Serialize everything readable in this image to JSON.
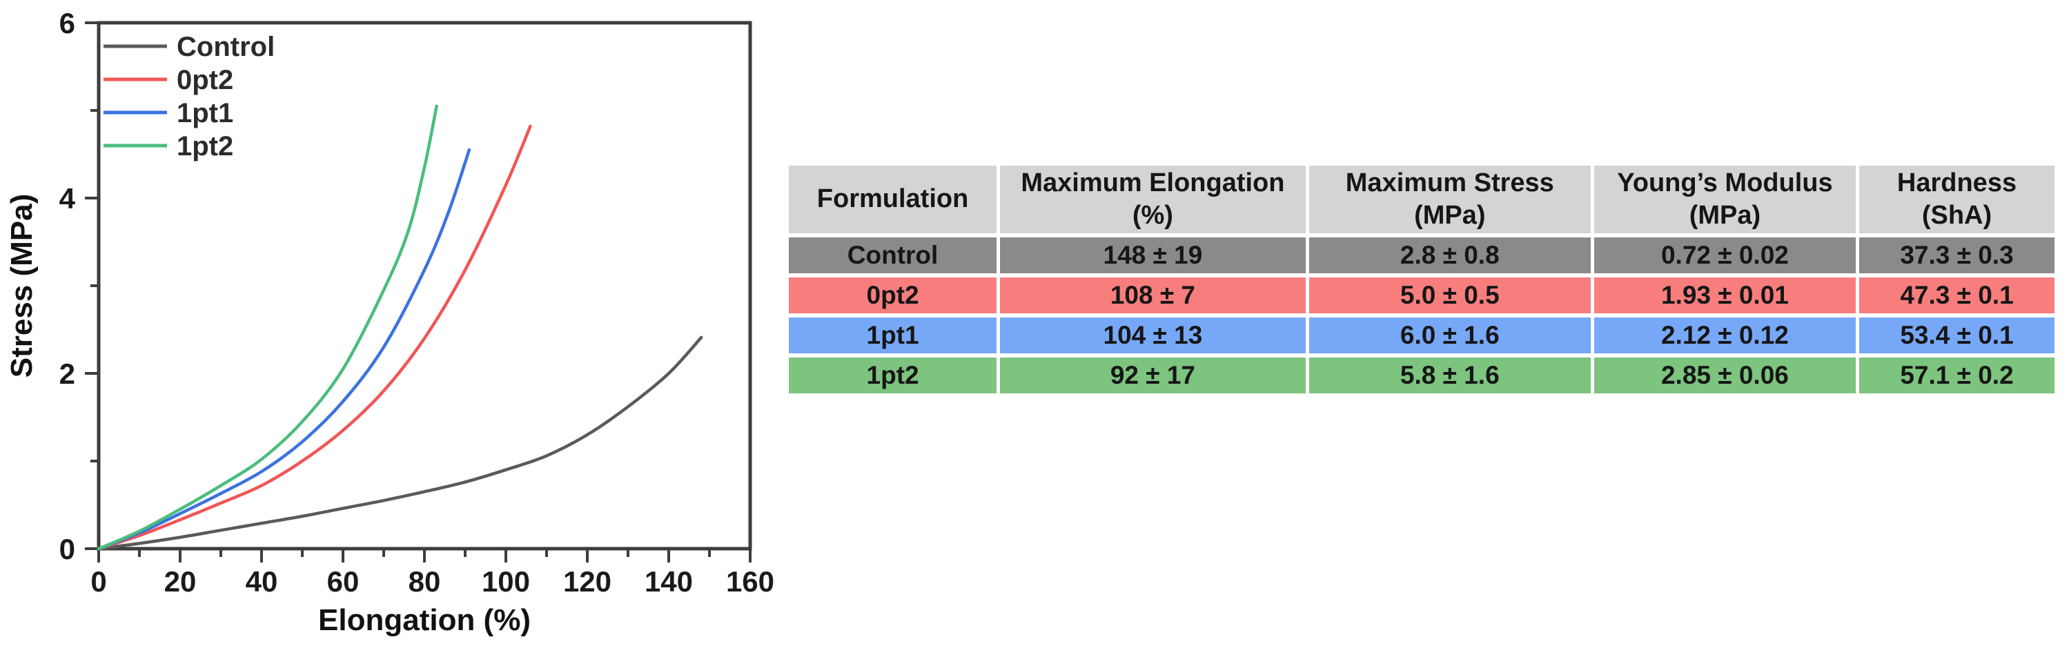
{
  "figure": {
    "background": "#ffffff",
    "axis_color": "#3d3d3d",
    "tick_label_color": "#1a1a1a"
  },
  "chart_data": {
    "type": "line",
    "title": "",
    "xlabel": "Elongation (%)",
    "ylabel": "Stress (MPa)",
    "xlim": [
      0,
      160
    ],
    "ylim": [
      0,
      6
    ],
    "x_major_ticks": [
      0,
      20,
      40,
      60,
      80,
      100,
      120,
      140,
      160
    ],
    "x_minor_step": 10,
    "y_major_ticks": [
      0,
      2,
      4,
      6
    ],
    "y_minor_step": 1,
    "grid": false,
    "legend_position": "top-left",
    "legend": [
      "Control",
      "0pt2",
      "1pt1",
      "1pt2"
    ],
    "series": [
      {
        "name": "Control",
        "color": "#5a5a5a",
        "points": [
          [
            0,
            0
          ],
          [
            10,
            0.06
          ],
          [
            20,
            0.13
          ],
          [
            30,
            0.21
          ],
          [
            40,
            0.29
          ],
          [
            50,
            0.37
          ],
          [
            60,
            0.46
          ],
          [
            70,
            0.55
          ],
          [
            80,
            0.65
          ],
          [
            90,
            0.76
          ],
          [
            100,
            0.9
          ],
          [
            110,
            1.06
          ],
          [
            120,
            1.3
          ],
          [
            130,
            1.62
          ],
          [
            140,
            2.0
          ],
          [
            148,
            2.41
          ]
        ]
      },
      {
        "name": "0pt2",
        "color": "#f25555",
        "points": [
          [
            0,
            0
          ],
          [
            10,
            0.15
          ],
          [
            20,
            0.33
          ],
          [
            30,
            0.52
          ],
          [
            40,
            0.72
          ],
          [
            50,
            1.0
          ],
          [
            60,
            1.35
          ],
          [
            70,
            1.8
          ],
          [
            80,
            2.4
          ],
          [
            90,
            3.18
          ],
          [
            100,
            4.15
          ],
          [
            106,
            4.82
          ]
        ]
      },
      {
        "name": "1pt1",
        "color": "#3b72e0",
        "points": [
          [
            0,
            0
          ],
          [
            10,
            0.18
          ],
          [
            20,
            0.4
          ],
          [
            30,
            0.63
          ],
          [
            40,
            0.88
          ],
          [
            50,
            1.22
          ],
          [
            60,
            1.68
          ],
          [
            70,
            2.3
          ],
          [
            80,
            3.18
          ],
          [
            86,
            3.85
          ],
          [
            91,
            4.55
          ]
        ]
      },
      {
        "name": "1pt2",
        "color": "#4abd7c",
        "points": [
          [
            0,
            0
          ],
          [
            10,
            0.2
          ],
          [
            20,
            0.45
          ],
          [
            30,
            0.72
          ],
          [
            40,
            1.02
          ],
          [
            50,
            1.45
          ],
          [
            60,
            2.05
          ],
          [
            70,
            2.95
          ],
          [
            76,
            3.62
          ],
          [
            80,
            4.35
          ],
          [
            83,
            5.05
          ]
        ]
      }
    ]
  },
  "table": {
    "header_bg": "#d4d4d4",
    "columns": [
      {
        "title": "Formulation",
        "unit": ""
      },
      {
        "title": "Maximum Elongation",
        "unit": "(%)"
      },
      {
        "title": "Maximum Stress",
        "unit": "(MPa)"
      },
      {
        "title": "Young’s Modulus",
        "unit": "(MPa)"
      },
      {
        "title": "Hardness",
        "unit": "(ShA)"
      }
    ],
    "rows": [
      {
        "formulation": "Control",
        "bg": "#8a8a8a",
        "values": [
          "148 ± 19",
          "2.8 ± 0.8",
          "0.72 ± 0.02",
          "37.3 ± 0.3"
        ]
      },
      {
        "formulation": "0pt2",
        "bg": "#f87e7e",
        "values": [
          "108 ± 7",
          "5.0 ± 0.5",
          "1.93 ± 0.01",
          "47.3 ± 0.1"
        ]
      },
      {
        "formulation": "1pt1",
        "bg": "#77a8f8",
        "values": [
          "104 ± 13",
          "6.0 ± 1.6",
          "2.12 ± 0.12",
          "53.4 ± 0.1"
        ]
      },
      {
        "formulation": "1pt2",
        "bg": "#7dc47e",
        "values": [
          "92 ± 17",
          "5.8 ± 1.6",
          "2.85 ± 0.06",
          "57.1 ± 0.2"
        ]
      }
    ]
  }
}
